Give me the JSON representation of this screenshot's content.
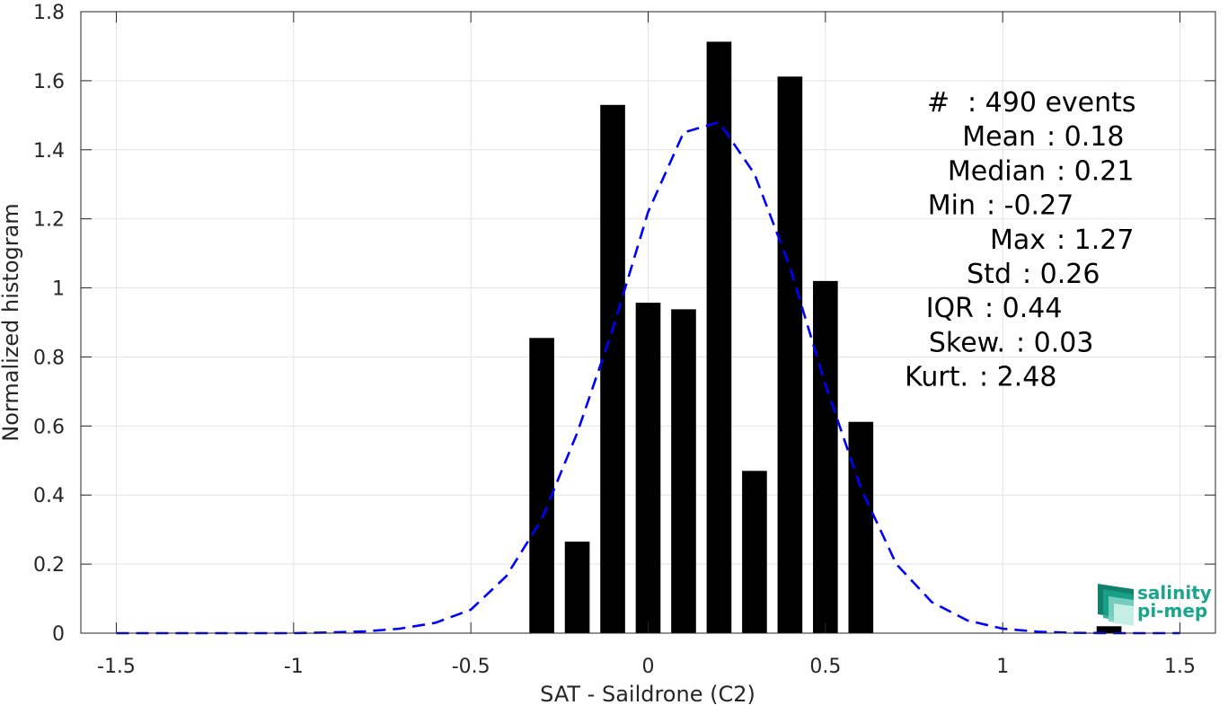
{
  "chart_data": {
    "type": "bar",
    "xlabel": "SAT - Saildrone (C2)",
    "ylabel": "Normalized histogram",
    "xlim": [
      -1.6,
      1.6
    ],
    "ylim": [
      0,
      1.8
    ],
    "x_ticks": [
      "-1.5",
      "-1",
      "-0.5",
      "0",
      "0.5",
      "1",
      "1.5"
    ],
    "x_tick_values": [
      -1.5,
      -1,
      -0.5,
      0,
      0.5,
      1,
      1.5
    ],
    "y_ticks": [
      "0",
      "0.2",
      "0.4",
      "0.6",
      "0.8",
      "1",
      "1.2",
      "1.4",
      "1.6",
      "1.8"
    ],
    "y_tick_values": [
      0,
      0.2,
      0.4,
      0.6,
      0.8,
      1,
      1.2,
      1.4,
      1.6,
      1.8
    ],
    "grid": true,
    "bar_width": 0.07,
    "bars": {
      "x": [
        -0.3,
        -0.2,
        -0.1,
        0.0,
        0.1,
        0.2,
        0.3,
        0.4,
        0.5,
        0.6,
        1.3
      ],
      "values": [
        0.855,
        0.265,
        1.53,
        0.957,
        0.938,
        1.713,
        0.47,
        1.612,
        1.02,
        0.612,
        0.02
      ],
      "color": "#000000"
    },
    "fit_curve": {
      "style": "dashed",
      "color": "#0000ff",
      "x": [
        -1.5,
        -1.4,
        -1.3,
        -1.2,
        -1.1,
        -1.0,
        -0.9,
        -0.8,
        -0.7,
        -0.6,
        -0.5,
        -0.4,
        -0.3,
        -0.2,
        -0.1,
        0.0,
        0.1,
        0.2,
        0.3,
        0.4,
        0.5,
        0.6,
        0.7,
        0.8,
        0.9,
        1.0,
        1.1,
        1.2,
        1.3,
        1.4,
        1.5
      ],
      "values": [
        0,
        0,
        0,
        0,
        0,
        0,
        0.002,
        0.005,
        0.013,
        0.03,
        0.068,
        0.165,
        0.33,
        0.58,
        0.88,
        1.22,
        1.45,
        1.48,
        1.33,
        1.06,
        0.72,
        0.42,
        0.2,
        0.09,
        0.037,
        0.013,
        0.004,
        0.001,
        0,
        0,
        0
      ]
    },
    "stats": [
      "#  : 490 events",
      "Mean : 0.18",
      "Median : 0.21",
      "Min : -0.27",
      "Max : 1.27",
      "Std : 0.26",
      "IQR : 0.44",
      "Skew. : 0.03",
      "Kurt. : 2.48"
    ],
    "logo": {
      "line1": "salinity",
      "line2": "pi-mep",
      "color": "#1aa58d"
    }
  }
}
